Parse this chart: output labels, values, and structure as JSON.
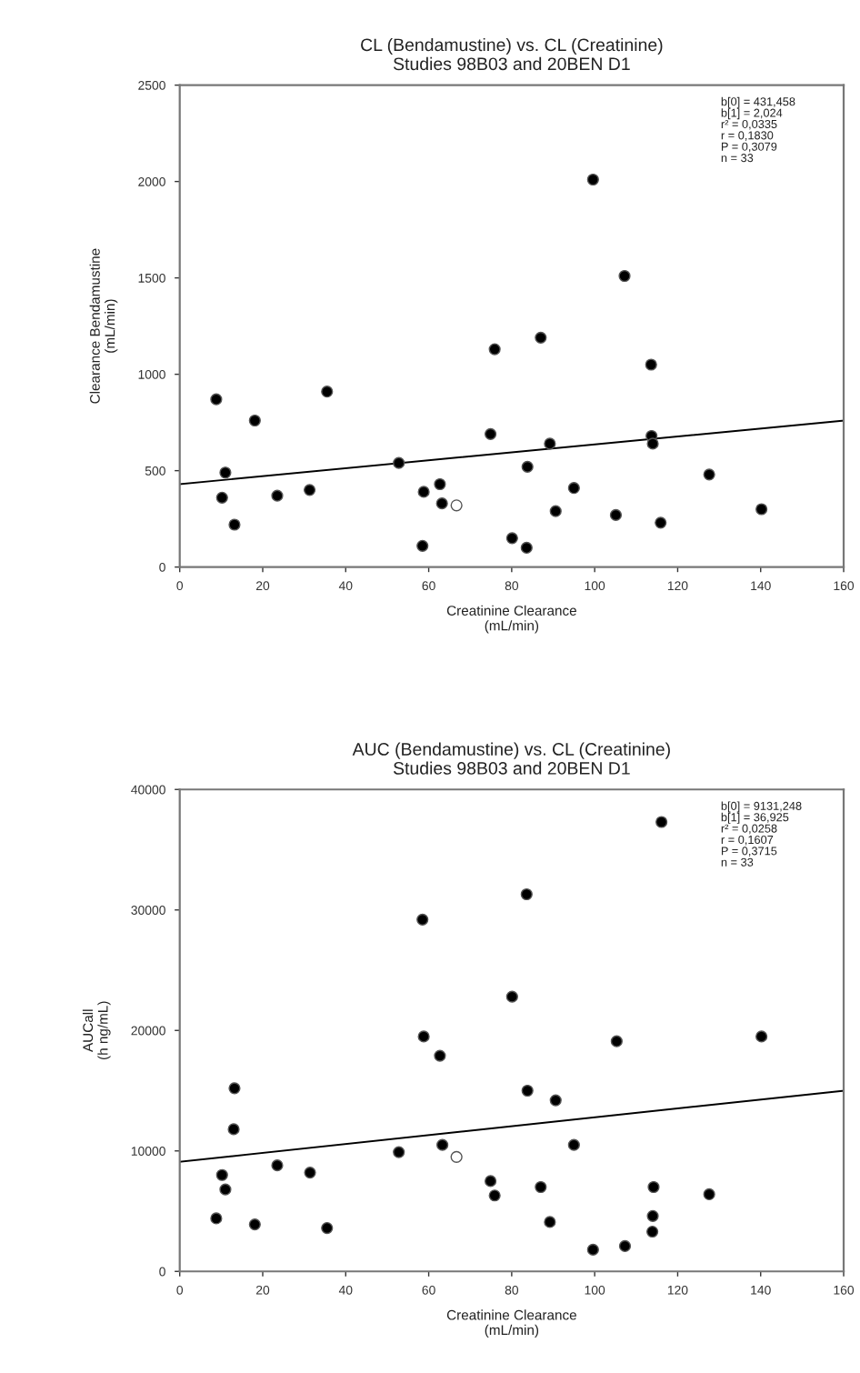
{
  "chart_data": [
    {
      "type": "scatter",
      "title": "CL (Bendamustine) vs. CL (Creatinine)\nStudies 98B03 and 20BEN D1",
      "xlabel": "Creatinine Clearance\n(mL/min)",
      "ylabel": "Clearance Bendamustine\n(mL/min)",
      "xlim": [
        0,
        160
      ],
      "xticks": [
        0,
        20,
        40,
        60,
        80,
        100,
        120,
        140,
        160
      ],
      "ylim": [
        0,
        2500
      ],
      "yticks": [
        0,
        500,
        1000,
        1500,
        2000,
        2500
      ],
      "grid": false,
      "marker": "circle",
      "annotations": [
        "b[0] = 431,458\nb[1] = 2,024\nr² = 0,0335\nr = 0,1830\nP = 0,3079\nn = 33"
      ],
      "series": [
        {
          "color": "#000000",
          "x": [
            8.8,
            10.2,
            11.0,
            13.2,
            18.1,
            23.5,
            31.3,
            35.5,
            52.8,
            58.5,
            58.8,
            62.7,
            63.2,
            74.9,
            75.9,
            80.1,
            83.6,
            83.8,
            87.0,
            89.2,
            90.6,
            95.0,
            99.6,
            105.1,
            107.2,
            113.6,
            113.7,
            114.0,
            115.9,
            127.6,
            140.2
          ],
          "values": [
            870,
            360,
            490,
            220,
            760,
            370,
            400,
            910,
            540,
            110,
            390,
            430,
            330,
            690,
            1130,
            150,
            100,
            520,
            1190,
            640,
            290,
            410,
            2010,
            270,
            1510,
            1050,
            680,
            640,
            230,
            480,
            300
          ]
        },
        {
          "color": "#ffffff",
          "x": [
            66.7
          ],
          "values": [
            320
          ]
        },
        {
          "type": "line",
          "color": "#000000",
          "line_style": "solid",
          "marker": "none",
          "x": [
            0,
            160
          ],
          "values": [
            430,
            760
          ]
        }
      ]
    },
    {
      "type": "scatter",
      "title": "AUC (Bendamustine) vs. CL (Creatinine)\nStudies 98B03 and 20BEN D1",
      "xlabel": "Creatinine Clearance\n(mL/min)",
      "ylabel": "AUCall\n(h ng/mL)",
      "xlim": [
        0,
        160
      ],
      "xticks": [
        0,
        20,
        40,
        60,
        80,
        100,
        120,
        140,
        160
      ],
      "ylim": [
        0,
        40000
      ],
      "yticks": [
        0,
        10000,
        20000,
        30000,
        40000
      ],
      "grid": false,
      "marker": "circle",
      "annotations": [
        "b[0] = 9131,248\nb[1] = 36,925\nr² = 0,0258\nr = 0,1607\nP = 0,3715\nn = 33"
      ],
      "series": [
        {
          "color": "#000000",
          "x": [
            8.8,
            10.2,
            11.0,
            13.2,
            13.0,
            18.1,
            23.5,
            31.4,
            35.5,
            52.8,
            58.5,
            58.8,
            62.7,
            63.3,
            74.9,
            75.9,
            80.1,
            83.6,
            83.8,
            87.0,
            89.2,
            90.6,
            95.0,
            99.6,
            105.3,
            107.3,
            116.1,
            114.2,
            114.0,
            113.9,
            127.6,
            140.2
          ],
          "values": [
            4400,
            8000,
            6800,
            15200,
            11800,
            3900,
            8800,
            8200,
            3600,
            9900,
            29200,
            19500,
            17900,
            10500,
            7500,
            6300,
            22800,
            31300,
            15000,
            7000,
            4100,
            14200,
            10500,
            1800,
            19100,
            2100,
            37300,
            7000,
            4600,
            3300,
            6400,
            19500
          ]
        },
        {
          "color": "#ffffff",
          "x": [
            66.7
          ],
          "values": [
            9500
          ]
        },
        {
          "type": "line",
          "color": "#000000",
          "line_style": "solid",
          "marker": "none",
          "x": [
            0,
            160
          ],
          "values": [
            9100,
            15000
          ]
        }
      ]
    }
  ]
}
